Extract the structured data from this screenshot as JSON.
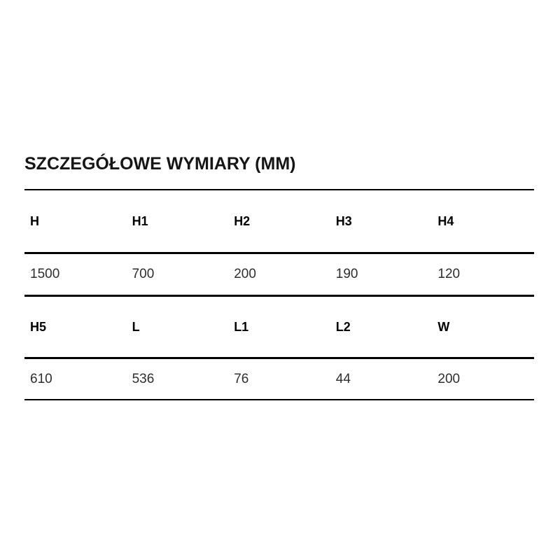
{
  "section": {
    "title": "SZCZEGÓŁOWE WYMIARY (MM)"
  },
  "table": {
    "rows": [
      {
        "type": "header",
        "cells": [
          "H",
          "H1",
          "H2",
          "H3",
          "H4"
        ]
      },
      {
        "type": "value",
        "cells": [
          "1500",
          "700",
          "200",
          "190",
          "120"
        ]
      },
      {
        "type": "header",
        "cells": [
          "H5",
          "L",
          "L1",
          "L2",
          "W"
        ]
      },
      {
        "type": "value",
        "cells": [
          "610",
          "536",
          "76",
          "44",
          "200"
        ]
      }
    ]
  },
  "colors": {
    "title": "#161616",
    "header_text": "#000000",
    "value_text": "#2e2e2e",
    "border": "#000000",
    "background": "#ffffff"
  }
}
